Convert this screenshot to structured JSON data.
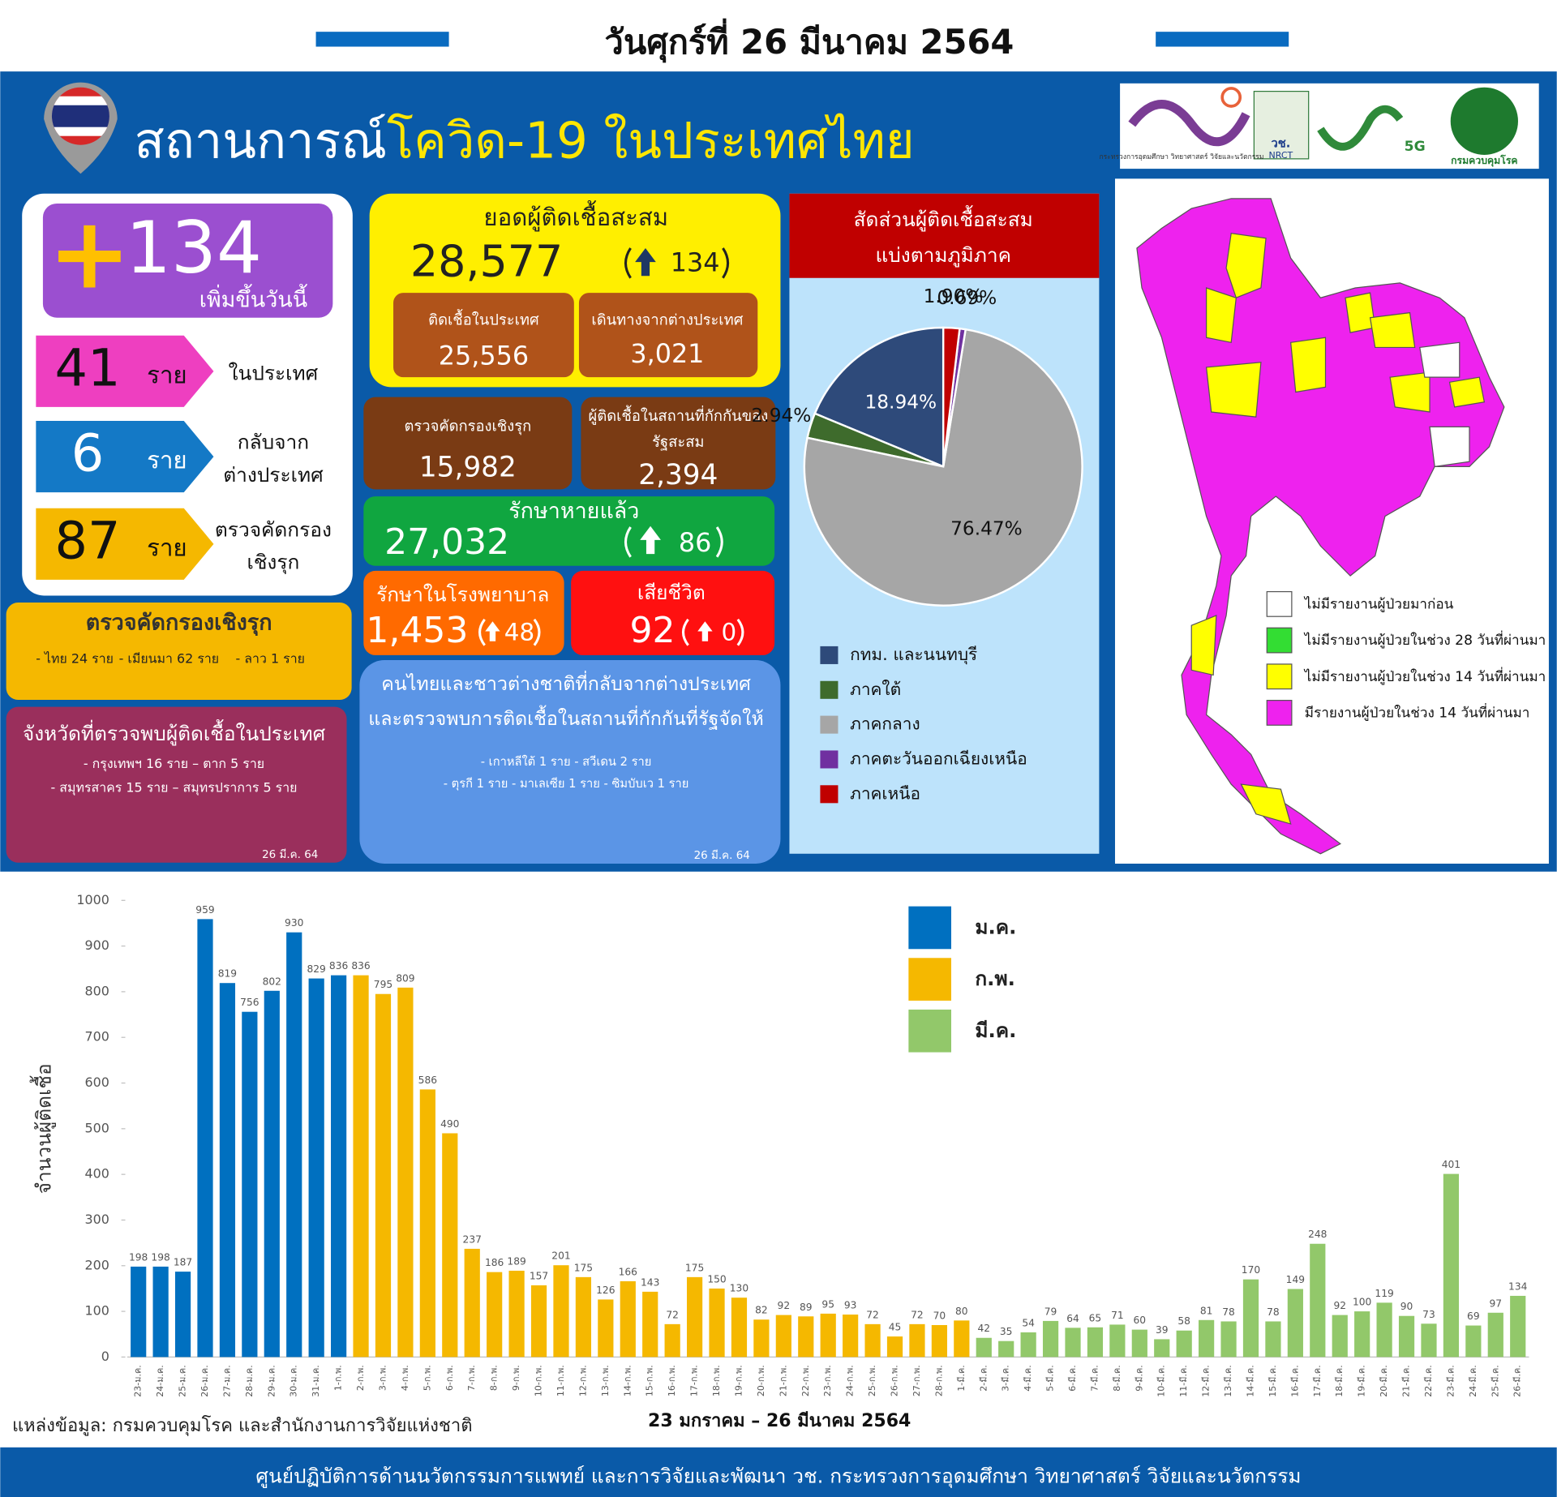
{
  "header": {
    "date": "วันศุกร์ที่ 26 มีนาคม 2564"
  },
  "banner": {
    "title_prefix": "สถานการณ์",
    "title_highlight": "โควิด-19 ในประเทศไทย"
  },
  "logos": [
    "กระทรวงการอุดมศึกษา วิทยาศาสตร์ วิจัยและนวัตกรรม",
    "วช.",
    "NRCT",
    "5G",
    "กรมควบคุมโรค"
  ],
  "today": {
    "sign": "+",
    "value": 134,
    "label": "เพิ่มขึ้นวันนี้"
  },
  "breakdown": [
    {
      "value": 41,
      "unit": "ราย",
      "label": [
        "ในประเทศ"
      ]
    },
    {
      "value": 6,
      "unit": "ราย",
      "label": [
        "กลับจาก",
        "ต่างประเทศ"
      ]
    },
    {
      "value": 87,
      "unit": "ราย",
      "label": [
        "ตรวจคัดกรอง",
        "เชิงรุก"
      ]
    }
  ],
  "cumulative": {
    "title": "ยอดผู้ติดเชื้อสะสม",
    "value": "28,577",
    "increase": 134,
    "domestic": {
      "label": "ติดเชื้อในประเทศ",
      "value": "25,556"
    },
    "imported": {
      "label": "เดินทางจากต่างประเทศ",
      "value": "3,021"
    }
  },
  "active_screening": {
    "label": "ตรวจคัดกรองเชิงรุก",
    "value": "15,982"
  },
  "quarantine": {
    "label": [
      "ผู้ติดเชื้อในสถานที่กักกันของ",
      "รัฐสะสม"
    ],
    "value": "2,394"
  },
  "recovered": {
    "label": "รักษาหายแล้ว",
    "value": "27,032",
    "increase": 86
  },
  "hospital": {
    "label": "รักษาในโรงพยาบาล",
    "value": "1,453",
    "increase": 48
  },
  "deaths": {
    "label": "เสียชีวิต",
    "value": 92,
    "increase": 0
  },
  "screening_box": {
    "title": "ตรวจคัดกรองเชิงรุก",
    "items": [
      "- ไทย 24 ราย",
      "- เมียนมา 62 ราย",
      "- ลาว 1 ราย"
    ]
  },
  "provinces_box": {
    "title": "จังหวัดที่ตรวจพบผู้ติดเชื้อในประเทศ",
    "lines": [
      "- กรุงเทพฯ  16  ราย    – ตาก 5 ราย",
      "- สมุทรสาคร  15  ราย    – สมุทรปราการ 5 ราย"
    ],
    "date": "26 มี.ค. 64"
  },
  "returnees_box": {
    "title": [
      "คนไทยและชาวต่างชาติที่กลับจากต่างประเทศ",
      "และตรวจพบการติดเชื้อในสถานที่กักกันที่รัฐจัดให้"
    ],
    "lines": [
      "- เกาหลีใต้ 1 ราย    - สวีเดน 2 ราย",
      "- ตุรกี 1 ราย     - มาเลเซีย 1 ราย   - ซิมบับเว 1 ราย"
    ],
    "date": "26 มี.ค. 64"
  },
  "map": {
    "legend": [
      {
        "label": "ไม่มีรายงานผู้ป่วยมาก่อน",
        "color": "#ffffff"
      },
      {
        "label": "ไม่มีรายงานผู้ป่วยในช่วง 28 วันที่ผ่านมา",
        "color": "#33dd33"
      },
      {
        "label": "ไม่มีรายงานผู้ป่วยในช่วง 14 วันที่ผ่านมา",
        "color": "#ffff00"
      },
      {
        "label": "มีรายงานผู้ป่วยในช่วง 14 วันที่ผ่านมา",
        "color": "#ee22ee"
      }
    ]
  },
  "footer": {
    "source": "แหล่งข้อมูล: กรมควบคุมโรค และสำนักงานการวิจัยแห่งชาติ",
    "credit": "ศูนย์ปฏิบัติการด้านนวัตกรรมการแพทย์ และการวิจัยและพัฒนา  วช.   กระทรวงการอุดมศึกษา วิทยาศาสตร์ วิจัยและนวัตกรรม"
  },
  "chart_data": [
    {
      "type": "pie",
      "title": "สัดส่วนผู้ติดเชื้อสะสม",
      "subtitle": "แบ่งตามภูมิภาค",
      "categories": [
        "กทม. และนนทบุรี",
        "ภาคใต้",
        "ภาคกลาง",
        "ภาคตะวันออกเฉียงเหนือ",
        "ภาคเหนือ"
      ],
      "values": [
        18.94,
        2.94,
        76.47,
        0.69,
        1.9
      ],
      "value_labels": [
        "18.94%",
        "2.94%",
        "76.47%",
        "0.69%",
        "1.90%"
      ],
      "colors": [
        "#2e4a7a",
        "#3e6b2c",
        "#a6a6a6",
        "#7030a0",
        "#c00000"
      ]
    },
    {
      "type": "bar",
      "x_label": "23 มกราคม – 26 มีนาคม 2564",
      "y_label": "จำนวนผู้ติดเชื้อ",
      "categories": [
        "23-ม.ค.",
        "24-ม.ค.",
        "25-ม.ค.",
        "26-ม.ค.",
        "27-ม.ค.",
        "28-ม.ค.",
        "29-ม.ค.",
        "30-ม.ค.",
        "31-ม.ค.",
        "1-ก.พ.",
        "2-ก.พ.",
        "3-ก.พ.",
        "4-ก.พ.",
        "5-ก.พ.",
        "6-ก.พ.",
        "7-ก.พ.",
        "8-ก.พ.",
        "9-ก.พ.",
        "10-ก.พ.",
        "11-ก.พ.",
        "12-ก.พ.",
        "13-ก.พ.",
        "14-ก.พ.",
        "15-ก.พ.",
        "16-ก.พ.",
        "17-ก.พ.",
        "18-ก.พ.",
        "19-ก.พ.",
        "20-ก.พ.",
        "21-ก.พ.",
        "22-ก.พ.",
        "23-ก.พ.",
        "24-ก.พ.",
        "25-ก.พ.",
        "26-ก.พ.",
        "27-ก.พ.",
        "28-ก.พ.",
        "1-มี.ค.",
        "2-มี.ค.",
        "3-มี.ค.",
        "4-มี.ค.",
        "5-มี.ค.",
        "6-มี.ค.",
        "7-มี.ค.",
        "8-มี.ค.",
        "9-มี.ค.",
        "10-มี.ค.",
        "11-มี.ค.",
        "12-มี.ค.",
        "13-มี.ค.",
        "14-มี.ค.",
        "15-มี.ค.",
        "16-มี.ค.",
        "17-มี.ค.",
        "18-มี.ค.",
        "19-มี.ค.",
        "20-มี.ค.",
        "21-มี.ค.",
        "22-มี.ค.",
        "23-มี.ค.",
        "24-มี.ค.",
        "25-มี.ค.",
        "26-มี.ค."
      ],
      "series": [
        {
          "name": "ม.ค.",
          "color": "#0070c0",
          "values": [
            198,
            198,
            187,
            959,
            819,
            756,
            802,
            930,
            829,
            836,
            null,
            null,
            null,
            null,
            null,
            null,
            null,
            null,
            null,
            null,
            null,
            null,
            null,
            null,
            null,
            null,
            null,
            null,
            null,
            null,
            null,
            null,
            null,
            null,
            null,
            null,
            null,
            null,
            null,
            null,
            null,
            null,
            null,
            null,
            null,
            null,
            null,
            null,
            null,
            null,
            null,
            null,
            null,
            null,
            null,
            null,
            null,
            null,
            null,
            null,
            null,
            null,
            null
          ]
        },
        {
          "name": "ก.พ.",
          "color": "#f5b800",
          "values": [
            null,
            null,
            null,
            null,
            null,
            null,
            null,
            null,
            null,
            null,
            836,
            795,
            809,
            586,
            490,
            237,
            186,
            189,
            157,
            201,
            175,
            126,
            166,
            143,
            72,
            175,
            150,
            130,
            82,
            92,
            89,
            95,
            93,
            72,
            45,
            72,
            70,
            80,
            null,
            null,
            null,
            null,
            null,
            null,
            null,
            null,
            null,
            null,
            null,
            null,
            null,
            null,
            null,
            null,
            null,
            null,
            null,
            null,
            null,
            null,
            null,
            null,
            null
          ]
        },
        {
          "name": "มี.ค.",
          "color": "#92c86a",
          "values": [
            null,
            null,
            null,
            null,
            null,
            null,
            null,
            null,
            null,
            null,
            null,
            null,
            null,
            null,
            null,
            null,
            null,
            null,
            null,
            null,
            null,
            null,
            null,
            null,
            null,
            null,
            null,
            null,
            null,
            null,
            null,
            null,
            null,
            null,
            null,
            null,
            null,
            null,
            42,
            35,
            54,
            79,
            64,
            65,
            71,
            60,
            39,
            58,
            81,
            78,
            170,
            78,
            149,
            248,
            92,
            100,
            119,
            90,
            73,
            401,
            69,
            97,
            134
          ]
        }
      ],
      "ylim": [
        0,
        1000
      ],
      "yticks": [
        0,
        100,
        200,
        300,
        400,
        500,
        600,
        700,
        800,
        900,
        1000
      ],
      "grid": false
    }
  ]
}
